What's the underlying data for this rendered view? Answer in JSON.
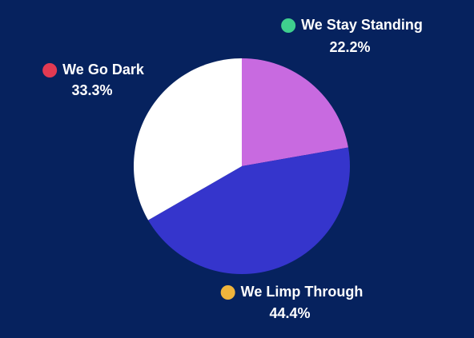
{
  "chart_data": {
    "type": "pie",
    "categories": [
      "We Stay Standing",
      "We Limp Through",
      "We Go Dark"
    ],
    "values": [
      22.2,
      44.4,
      33.3
    ],
    "value_labels": [
      "22.2%",
      "44.4%",
      "33.3%"
    ],
    "colors": [
      "#c86ae0",
      "#3535cc",
      "#ffffff"
    ],
    "label_dot_colors": [
      "#3fcf8e",
      "#f0b43c",
      "#e23a52"
    ]
  }
}
